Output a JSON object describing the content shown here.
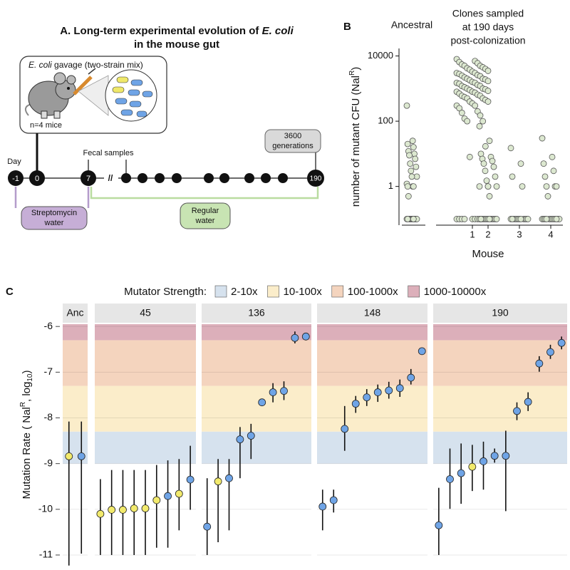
{
  "panel_a": {
    "title_parts": [
      "A. Long-term experimental evolution of ",
      "E. coli",
      "in the mouse gut"
    ],
    "gavage_parts": [
      "E. coli",
      " gavage (two-strain mix)"
    ],
    "mice": "n=4 mice",
    "day_label": "Day",
    "days": [
      "-1",
      "0",
      "7",
      "190"
    ],
    "fecal": "Fecal samples",
    "break": "//",
    "generations": [
      "3600",
      "generations"
    ],
    "streptomycin": [
      "Streptomycin",
      "water"
    ],
    "regular": [
      "Regular",
      "water"
    ]
  },
  "chart_data": [
    {
      "type": "strip",
      "panel_label": "B",
      "header": "Ancestral",
      "clones_header": [
        "Clones sampled",
        "at 190 days",
        "post-colonization"
      ],
      "y_label_parts": [
        "number of mutant CFU (Nal",
        "R",
        ")"
      ],
      "x_label": "Mouse",
      "log_y": true,
      "categories": [
        null,
        "1",
        "2",
        "3",
        "4"
      ],
      "values": [
        [
          300,
          25,
          20,
          16,
          12,
          10,
          9,
          7,
          5,
          4,
          3,
          2,
          2,
          1.2,
          1,
          1,
          1,
          0.5,
          0.1,
          0.1,
          0.1,
          0.1,
          0.1,
          0.1,
          0.1,
          0.1,
          0.1,
          0.1,
          0.1,
          0.1
        ],
        [
          8000,
          7000,
          6500,
          6000,
          5500,
          5000,
          5000,
          4500,
          4200,
          4000,
          3800,
          3500,
          3300,
          3000,
          3000,
          2800,
          2600,
          2500,
          2400,
          2200,
          2000,
          2000,
          1900,
          1800,
          1700,
          1600,
          1500,
          1500,
          1400,
          1300,
          1200,
          1200,
          1100,
          1000,
          1000,
          950,
          900,
          850,
          800,
          800,
          750,
          700,
          650,
          600,
          600,
          550,
          500,
          500,
          450,
          400,
          400,
          350,
          300,
          300,
          250,
          200,
          180,
          150,
          120,
          100,
          100,
          17,
          8,
          1,
          0.1,
          0.1,
          0.1,
          0.1,
          0.1,
          0.1,
          0.1,
          0.1
        ],
        [
          70,
          25,
          10,
          8,
          7,
          6,
          5,
          4,
          3,
          2,
          1.5,
          1,
          1,
          1,
          0.5,
          0.1,
          0.1,
          0.1,
          0.1,
          0.1,
          0.1,
          0.1,
          0.1,
          0.1,
          0.1,
          0.1,
          0.1,
          0.1,
          0.1
        ],
        [
          15,
          5,
          2,
          1,
          0.1,
          0.1,
          0.1,
          0.1,
          0.1,
          0.1,
          0.1,
          0.1,
          0.1,
          0.1,
          0.1,
          0.1
        ],
        [
          30,
          8,
          5,
          3,
          2,
          1,
          1,
          1,
          0.5,
          0.1,
          0.1,
          0.1,
          0.1,
          0.1,
          0.1,
          0.1,
          0.1,
          0.1,
          0.1,
          0.1,
          0.1
        ]
      ],
      "color": "#dce8d0",
      "ylim": [
        0.065,
        17000
      ],
      "yticks": [
        1,
        100,
        10000
      ]
    },
    {
      "type": "errorbar",
      "panel_label": "C",
      "legend_title": "Mutator Strength:",
      "bands": [
        {
          "name": "2-10x",
          "color": "#d6e2ee",
          "range": [
            -9,
            -8.3
          ]
        },
        {
          "name": "10-100x",
          "color": "#fbedca",
          "range": [
            -8.3,
            -7.3
          ]
        },
        {
          "name": "100-1000x",
          "color": "#f4d4be",
          "range": [
            -7.3,
            -6.3
          ]
        },
        {
          "name": "1000-10000x",
          "color": "#dcafba",
          "range": [
            -6.3,
            -5.3
          ]
        }
      ],
      "y_label_parts": [
        "Mutation Rate ( Nal",
        "R",
        ", log",
        "10",
        ")"
      ],
      "facets": [
        {
          "name": "Anc",
          "values": [
            -8.84,
            -8.84
          ],
          "lower": [
            -11.23,
            -10.97
          ],
          "upper": [
            -8.08,
            -8.08
          ],
          "colors": [
            "#f2ea6c",
            "#6fa4e6"
          ]
        },
        {
          "name": "45",
          "values": [
            -10.1,
            -10.01,
            -10.01,
            -9.98,
            -9.98,
            -9.8,
            -9.71,
            -9.66,
            -9.35
          ],
          "lower": [
            -11,
            -11,
            -11,
            -11,
            -11,
            -10.84,
            -10.84,
            -10.46,
            -10.01
          ],
          "upper": [
            -9.34,
            -9.14,
            -9.14,
            -9.14,
            -9.14,
            -9.03,
            -8.93,
            -8.9,
            -8.61
          ],
          "colors": [
            "#f2ea6c",
            "#f2ea6c",
            "#f2ea6c",
            "#f2ea6c",
            "#f2ea6c",
            "#f2ea6c",
            "#6fa4e6",
            "#f2ea6c",
            "#6fa4e6"
          ]
        },
        {
          "name": "136",
          "values": [
            -10.38,
            -9.39,
            -9.32,
            -8.47,
            -8.39,
            -7.66,
            -7.44,
            -7.41,
            -6.25,
            -6.22
          ],
          "lower": [
            -11,
            -10.72,
            -10.46,
            -9.32,
            -8.9,
            -7.74,
            -7.66,
            -7.61,
            -6.37,
            -6.28
          ],
          "upper": [
            -9.32,
            -8.9,
            -8.9,
            -8.2,
            -8.13,
            -7.58,
            -7.24,
            -7.2,
            -6.11,
            -6.15
          ],
          "colors": [
            "#6fa4e6",
            "#f2ea6c",
            "#6fa4e6",
            "#6fa4e6",
            "#6fa4e6",
            "#6fa4e6",
            "#6fa4e6",
            "#6fa4e6",
            "#6fa4e6",
            "#6fa4e6"
          ]
        },
        {
          "name": "148",
          "values": [
            -9.94,
            -9.8,
            -8.24,
            -7.69,
            -7.55,
            -7.44,
            -7.4,
            -7.35,
            -7.12,
            -6.54
          ],
          "lower": [
            -10.46,
            -10.07,
            -8.72,
            -7.89,
            -7.74,
            -7.65,
            -7.58,
            -7.54,
            -7.27,
            -6.6
          ],
          "upper": [
            -9.57,
            -9.57,
            -7.74,
            -7.52,
            -7.37,
            -7.27,
            -7.21,
            -7.16,
            -6.93,
            -6.48
          ],
          "colors": [
            "#6fa4e6",
            "#6fa4e6",
            "#6fa4e6",
            "#6fa4e6",
            "#6fa4e6",
            "#6fa4e6",
            "#6fa4e6",
            "#6fa4e6",
            "#6fa4e6",
            "#6fa4e6"
          ]
        },
        {
          "name": "190",
          "values": [
            -10.35,
            -9.34,
            -9.21,
            -9.07,
            -8.95,
            -8.83,
            -8.83,
            -7.85,
            -7.65,
            -6.81,
            -6.56,
            -6.36
          ],
          "lower": [
            -11,
            -9.99,
            -9.88,
            -9.6,
            -9.57,
            -8.98,
            -10.04,
            -8.05,
            -7.85,
            -6.99,
            -6.71,
            -6.5
          ],
          "upper": [
            -9.53,
            -8.67,
            -8.56,
            -8.59,
            -8.52,
            -8.67,
            -8.28,
            -7.66,
            -7.44,
            -6.65,
            -6.4,
            -6.22
          ],
          "colors": [
            "#6fa4e6",
            "#6fa4e6",
            "#6fa4e6",
            "#f2ea6c",
            "#6fa4e6",
            "#6fa4e6",
            "#6fa4e6",
            "#6fa4e6",
            "#6fa4e6",
            "#6fa4e6",
            "#6fa4e6",
            "#6fa4e6"
          ]
        }
      ],
      "ylim": [
        -11.25,
        -5.95
      ],
      "yticks": [
        -11,
        -10,
        -9,
        -8,
        -7,
        -6
      ],
      "grid": true
    }
  ]
}
